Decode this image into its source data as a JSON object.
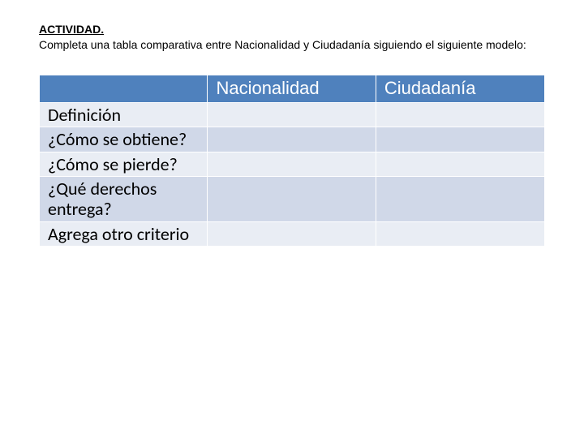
{
  "heading": "ACTIVIDAD.",
  "instruction": "Completa una tabla comparativa entre Nacionalidad y Ciudadanía siguiendo el siguiente modelo:",
  "table": {
    "columns": [
      "",
      "Nacionalidad",
      "Ciudadanía"
    ],
    "rows": [
      {
        "label": "Definición",
        "cells": [
          "",
          ""
        ]
      },
      {
        "label": "¿Cómo se obtiene?",
        "cells": [
          "",
          ""
        ]
      },
      {
        "label": "¿Cómo se pierde?",
        "cells": [
          "",
          ""
        ]
      },
      {
        "label": "¿Qué derechos entrega?",
        "cells": [
          "",
          ""
        ]
      },
      {
        "label": "Agrega otro criterio",
        "cells": [
          "",
          ""
        ]
      }
    ],
    "colors": {
      "header_bg": "#4f81bd",
      "header_text": "#ffffff",
      "band_even": "#e9edf4",
      "band_odd": "#d0d8e8",
      "row_text": "#000000",
      "border": "#ffffff"
    },
    "fontsize": {
      "header": 22,
      "rowlabel": 22,
      "heading": 14,
      "instruction": 14
    }
  }
}
